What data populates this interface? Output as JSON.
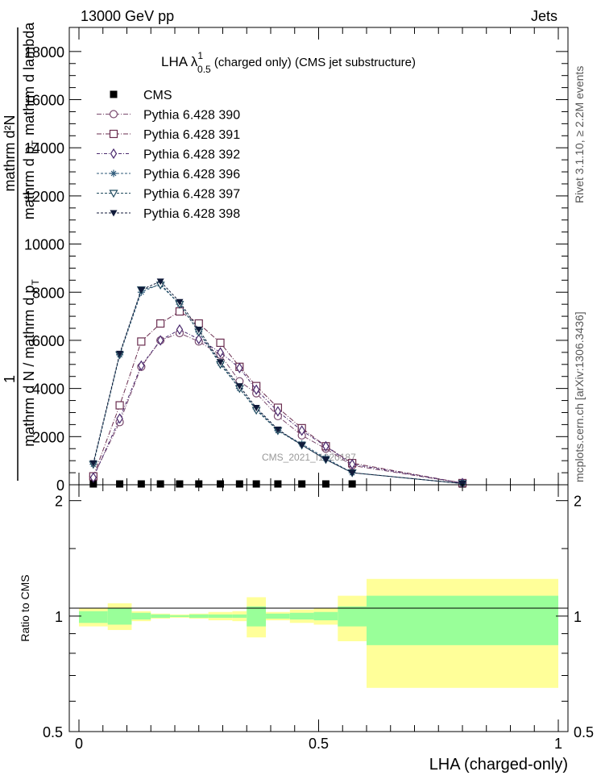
{
  "header": {
    "left": "13000 GeV pp",
    "right": "Jets"
  },
  "side_labels": {
    "rivet": "Rivet 3.1.10, ≥ 2.2M events",
    "mcplots": "mcplots.cern.ch [arXiv:1306.3436]"
  },
  "main": {
    "title": {
      "prefix": "LHA λ",
      "sup": "1",
      "sub": "0.5",
      "rest": " (charged only) (CMS jet substructure)"
    },
    "ylabel_top": "1",
    "ylabel_num": "mathrm d²N",
    "ylabel_den_a": "mathrm d p",
    "ylabel_den_b": "T",
    "ylabel_den_c": "mathrm d lambda",
    "ylabel_bottom": "mathrm d N / mathrm d p",
    "ylabel_bottom_sub": "T",
    "watermark": "CMS_2021_I1920187",
    "ytick_labels": [
      "0",
      "2000",
      "4000",
      "6000",
      "8000",
      "10000",
      "12000",
      "14000",
      "16000",
      "18000"
    ]
  },
  "ratio": {
    "ylabel": "Ratio to CMS",
    "ytick_labels": [
      "0.5",
      "1",
      "2"
    ]
  },
  "xaxis": {
    "label": "LHA (charged-only)",
    "tick_labels": [
      "0",
      "0.5",
      "1"
    ]
  },
  "colors": {
    "p390": "#7a4a6e",
    "p391": "#6a2d4f",
    "p392": "#4b2a6e",
    "p396": "#2e5a7a",
    "p397": "#1f4a5e",
    "p398": "#101a3a",
    "band_inner": "#99ff99",
    "band_outer": "#ffff99"
  },
  "chart_data": {
    "type": "line",
    "xlim": [
      0,
      1
    ],
    "ylim": [
      0,
      19000
    ],
    "ratio_ylim": [
      0.5,
      2.2
    ],
    "bin_edges": [
      0,
      0.06,
      0.11,
      0.15,
      0.19,
      0.23,
      0.27,
      0.32,
      0.35,
      0.39,
      0.44,
      0.49,
      0.54,
      0.6,
      1.0
    ],
    "x": [
      0.03,
      0.085,
      0.13,
      0.17,
      0.21,
      0.25,
      0.295,
      0.335,
      0.37,
      0.415,
      0.465,
      0.515,
      0.57,
      0.8
    ],
    "series": [
      {
        "name": "CMS",
        "marker": "square",
        "color": "#000000",
        "values": [
          0,
          0,
          0,
          0,
          0,
          0,
          0,
          0,
          0,
          0,
          0,
          0,
          0,
          0
        ]
      },
      {
        "name": "Pythia 6.428 390",
        "marker": "circle",
        "color": "#7a4a6e",
        "dash": "6,2,1,2",
        "values": [
          350,
          2600,
          4900,
          6000,
          6300,
          5950,
          5400,
          4300,
          3800,
          2850,
          2050,
          1500,
          800,
          70
        ]
      },
      {
        "name": "Pythia 6.428 391",
        "marker": "square-open",
        "color": "#6a2d4f",
        "dash": "6,2,1,2",
        "values": [
          350,
          3300,
          5950,
          6700,
          7200,
          6700,
          5900,
          4900,
          4100,
          3200,
          2350,
          1600,
          900,
          70
        ]
      },
      {
        "name": "Pythia 6.428 392",
        "marker": "diamond",
        "color": "#4b2a6e",
        "dash": "4,2,1,2",
        "values": [
          300,
          2750,
          4950,
          6000,
          6450,
          6050,
          5500,
          4850,
          3950,
          3050,
          2250,
          1600,
          850,
          70
        ]
      },
      {
        "name": "Pythia 6.428 396",
        "marker": "star",
        "color": "#2e5a7a",
        "dash": "3,2",
        "values": [
          850,
          5400,
          8000,
          8350,
          7500,
          6350,
          5050,
          4000,
          3150,
          2250,
          1700,
          1100,
          500,
          50
        ]
      },
      {
        "name": "Pythia 6.428 397",
        "marker": "triangle-open",
        "color": "#1f4a5e",
        "dash": "3,2",
        "values": [
          850,
          5400,
          8100,
          8300,
          7500,
          6350,
          5000,
          4000,
          3100,
          2250,
          1650,
          1050,
          500,
          50
        ]
      },
      {
        "name": "Pythia 6.428 398",
        "marker": "triangle-down",
        "color": "#101a3a",
        "dash": "3,2",
        "values": [
          900,
          5450,
          8100,
          8450,
          7600,
          6450,
          5100,
          4100,
          3200,
          2300,
          1650,
          1050,
          500,
          50
        ]
      }
    ],
    "ratio_band": {
      "inner": [
        [
          0.96,
          1.03
        ],
        [
          0.95,
          1.05
        ],
        [
          0.98,
          1.02
        ],
        [
          0.99,
          1.01
        ],
        [
          0.995,
          1.005
        ],
        [
          0.99,
          1.01
        ],
        [
          0.99,
          1.01
        ],
        [
          0.99,
          1.01
        ],
        [
          0.94,
          1.06
        ],
        [
          0.985,
          1.015
        ],
        [
          0.98,
          1.02
        ],
        [
          0.975,
          1.025
        ],
        [
          0.94,
          1.06
        ],
        [
          0.84,
          1.13
        ]
      ],
      "outer": [
        [
          0.94,
          1.05
        ],
        [
          0.92,
          1.08
        ],
        [
          0.97,
          1.03
        ],
        [
          0.985,
          1.015
        ],
        [
          0.99,
          1.01
        ],
        [
          0.985,
          1.015
        ],
        [
          0.975,
          1.025
        ],
        [
          0.97,
          1.03
        ],
        [
          0.88,
          1.12
        ],
        [
          0.975,
          1.025
        ],
        [
          0.96,
          1.04
        ],
        [
          0.95,
          1.05
        ],
        [
          0.86,
          1.13
        ],
        [
          0.65,
          1.25
        ]
      ]
    }
  }
}
